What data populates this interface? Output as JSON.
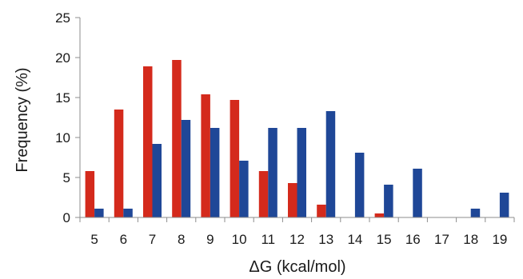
{
  "chart_data": {
    "type": "bar",
    "title": "",
    "xlabel": "ΔG (kcal/mol)",
    "ylabel": "Frequency (%)",
    "ylim": [
      0,
      25
    ],
    "yticks": [
      "0",
      "5",
      "10",
      "15",
      "20",
      "25"
    ],
    "grid": false,
    "legend": "none",
    "categories": [
      "5",
      "6",
      "7",
      "8",
      "9",
      "10",
      "11",
      "12",
      "13",
      "14",
      "15",
      "16",
      "17",
      "18",
      "19"
    ],
    "series": [
      {
        "color": "#d42a1c",
        "values": [
          5.8,
          13.5,
          18.9,
          19.7,
          15.4,
          14.7,
          5.8,
          4.3,
          1.6,
          0,
          0.5,
          0,
          0,
          0,
          0
        ]
      },
      {
        "color": "#1f4797",
        "values": [
          1.1,
          1.1,
          9.2,
          12.2,
          11.2,
          7.1,
          11.2,
          11.2,
          13.3,
          8.1,
          4.1,
          6.1,
          0,
          1.1,
          3.1
        ]
      }
    ]
  }
}
